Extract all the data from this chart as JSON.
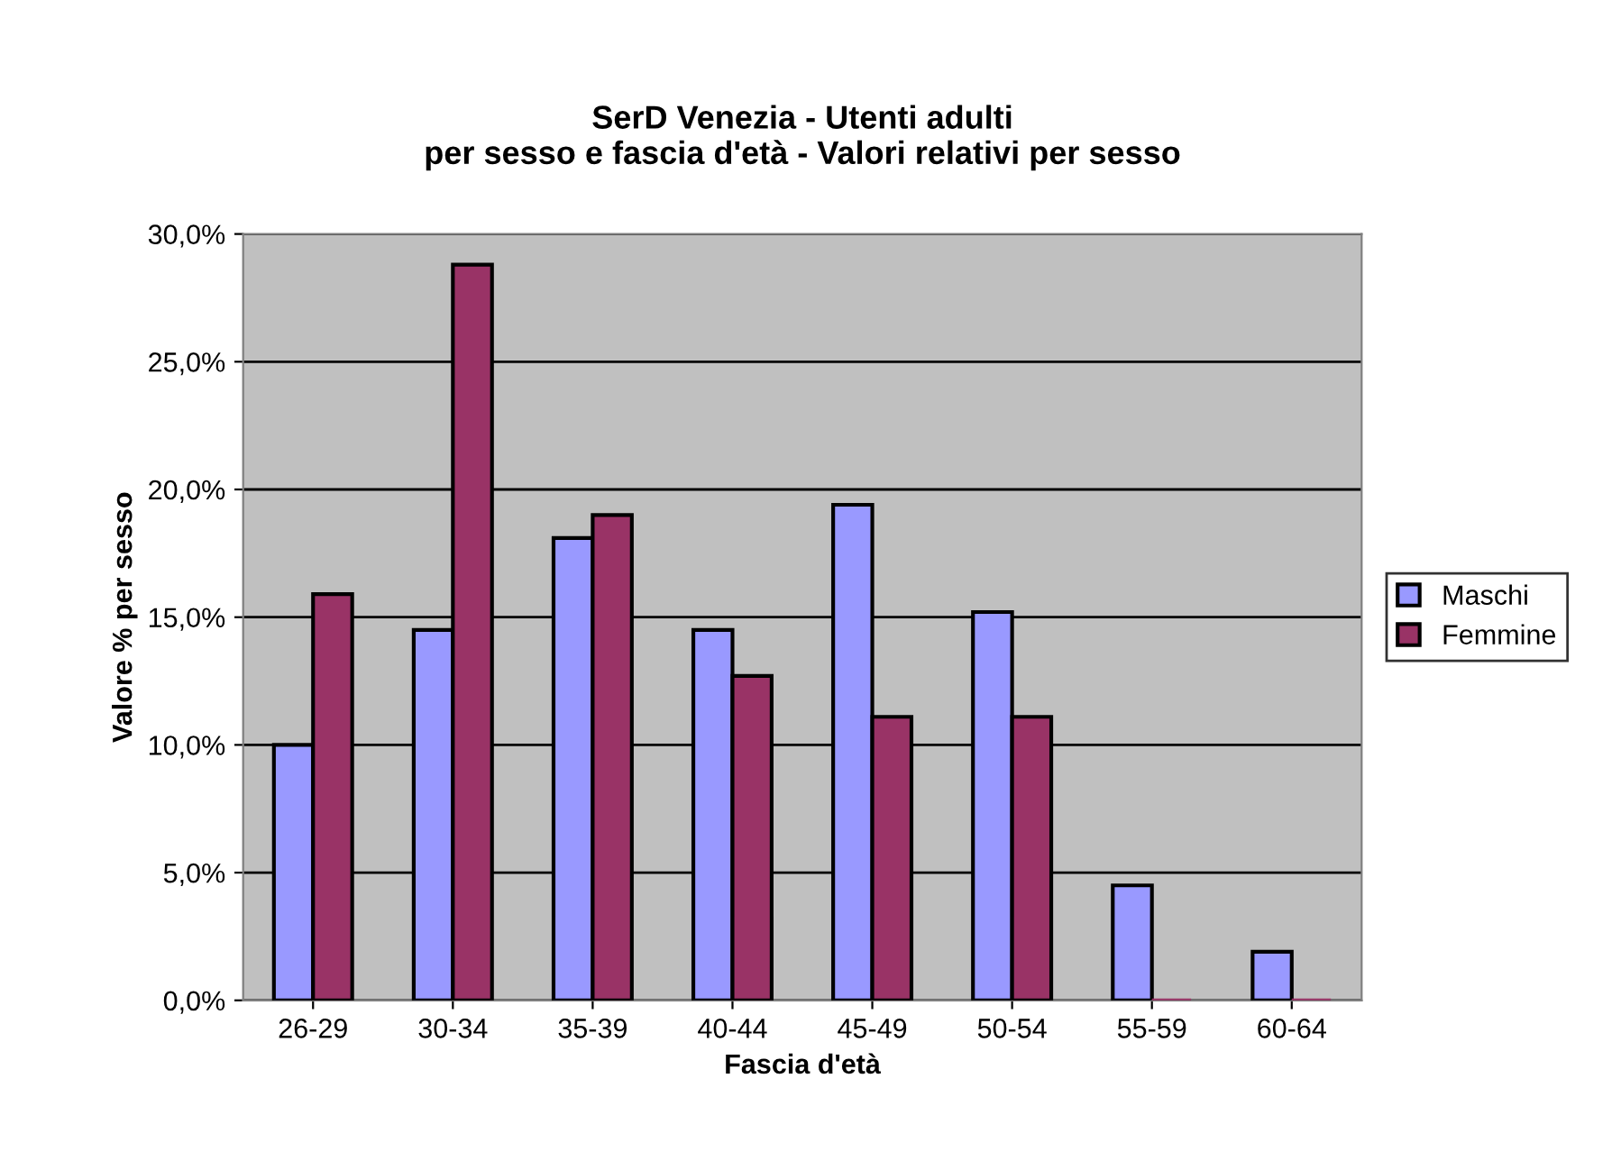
{
  "chart_data": {
    "type": "bar",
    "title": "SerD Venezia - Utenti adulti\nper sesso e fascia d'età - Valori relativi per sesso",
    "xlabel": "Fascia d'età",
    "ylabel": "Valore % per sesso",
    "categories": [
      "26-29",
      "30-34",
      "35-39",
      "40-44",
      "45-49",
      "50-54",
      "55-59",
      "60-64"
    ],
    "series": [
      {
        "name": "Maschi",
        "color": "#9999ff",
        "values": [
          10.0,
          14.5,
          18.1,
          14.5,
          19.4,
          15.2,
          4.5,
          1.9
        ]
      },
      {
        "name": "Femmine",
        "color": "#993366",
        "values": [
          15.9,
          28.8,
          19.0,
          12.7,
          11.1,
          11.1,
          0,
          0
        ]
      }
    ],
    "ylim": [
      0,
      30
    ],
    "yticks": [
      {
        "value": 0,
        "label": "0,0%"
      },
      {
        "value": 5,
        "label": "5,0%"
      },
      {
        "value": 10,
        "label": "10,0%"
      },
      {
        "value": 15,
        "label": "15,0%"
      },
      {
        "value": 20,
        "label": "20,0%"
      },
      {
        "value": 25,
        "label": "25,0%"
      },
      {
        "value": 30,
        "label": "30,0%"
      }
    ],
    "grid": "y",
    "legend": "right"
  }
}
